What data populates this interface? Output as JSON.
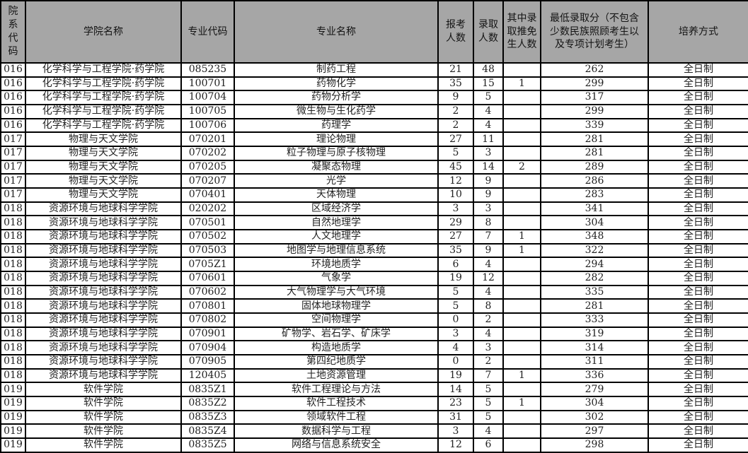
{
  "table": {
    "columns": [
      {
        "key": "dept-code",
        "label": "院系代码"
      },
      {
        "key": "college-name",
        "label": "学院名称"
      },
      {
        "key": "major-code",
        "label": "专业代码"
      },
      {
        "key": "major-name",
        "label": "专业名称"
      },
      {
        "key": "applicants",
        "label": "报考人数"
      },
      {
        "key": "admitted",
        "label": "录取人数"
      },
      {
        "key": "exempt-count",
        "label": "其中录取推免生人数"
      },
      {
        "key": "min-score",
        "label": "最低录取分（不包含少数民族照顾考生以及专项计划考生）"
      },
      {
        "key": "training-mode",
        "label": "培养方式"
      }
    ],
    "rows": [
      [
        "016",
        "化学科学与工程学院·药学院",
        "085235",
        "制药工程",
        "21",
        "48",
        "",
        "262",
        "全日制"
      ],
      [
        "016",
        "化学科学与工程学院·药学院",
        "100701",
        "药物化学",
        "35",
        "15",
        "1",
        "299",
        "全日制"
      ],
      [
        "016",
        "化学科学与工程学院·药学院",
        "100704",
        "药物分析学",
        "9",
        "5",
        "",
        "317",
        "全日制"
      ],
      [
        "016",
        "化学科学与工程学院·药学院",
        "100705",
        "微生物与生化药学",
        "2",
        "4",
        "",
        "299",
        "全日制"
      ],
      [
        "016",
        "化学科学与工程学院·药学院",
        "100706",
        "药理学",
        "2",
        "4",
        "",
        "339",
        "全日制"
      ],
      [
        "017",
        "物理与天文学院",
        "070201",
        "理论物理",
        "27",
        "11",
        "",
        "281",
        "全日制"
      ],
      [
        "017",
        "物理与天文学院",
        "070202",
        "粒子物理与原子核物理",
        "5",
        "3",
        "",
        "281",
        "全日制"
      ],
      [
        "017",
        "物理与天文学院",
        "070205",
        "凝聚态物理",
        "45",
        "14",
        "2",
        "289",
        "全日制"
      ],
      [
        "017",
        "物理与天文学院",
        "070207",
        "光学",
        "12",
        "9",
        "",
        "286",
        "全日制"
      ],
      [
        "017",
        "物理与天文学院",
        "070401",
        "天体物理",
        "10",
        "9",
        "",
        "283",
        "全日制"
      ],
      [
        "018",
        "资源环境与地球科学学院",
        "020202",
        "区域经济学",
        "3",
        "3",
        "",
        "341",
        "全日制"
      ],
      [
        "018",
        "资源环境与地球科学学院",
        "070501",
        "自然地理学",
        "29",
        "8",
        "",
        "304",
        "全日制"
      ],
      [
        "018",
        "资源环境与地球科学学院",
        "070502",
        "人文地理学",
        "27",
        "7",
        "1",
        "348",
        "全日制"
      ],
      [
        "018",
        "资源环境与地球科学学院",
        "070503",
        "地图学与地理信息系统",
        "35",
        "9",
        "1",
        "322",
        "全日制"
      ],
      [
        "018",
        "资源环境与地球科学学院",
        "0705Z1",
        "环境地质学",
        "6",
        "4",
        "",
        "294",
        "全日制"
      ],
      [
        "018",
        "资源环境与地球科学学院",
        "070601",
        "气象学",
        "19",
        "12",
        "",
        "282",
        "全日制"
      ],
      [
        "018",
        "资源环境与地球科学学院",
        "070602",
        "大气物理学与大气环境",
        "5",
        "4",
        "",
        "335",
        "全日制"
      ],
      [
        "018",
        "资源环境与地球科学学院",
        "070801",
        "固体地球物理学",
        "5",
        "8",
        "",
        "281",
        "全日制"
      ],
      [
        "018",
        "资源环境与地球科学学院",
        "070802",
        "空间物理学",
        "0",
        "2",
        "",
        "333",
        "全日制"
      ],
      [
        "018",
        "资源环境与地球科学学院",
        "070901",
        "矿物学、岩石学、矿床学",
        "3",
        "4",
        "",
        "319",
        "全日制"
      ],
      [
        "018",
        "资源环境与地球科学学院",
        "070904",
        "构造地质学",
        "4",
        "3",
        "",
        "314",
        "全日制"
      ],
      [
        "018",
        "资源环境与地球科学学院",
        "070905",
        "第四纪地质学",
        "0",
        "2",
        "",
        "311",
        "全日制"
      ],
      [
        "018",
        "资源环境与地球科学学院",
        "120405",
        "土地资源管理",
        "19",
        "7",
        "1",
        "336",
        "全日制"
      ],
      [
        "019",
        "软件学院",
        "0835Z1",
        "软件工程理论与方法",
        "14",
        "5",
        "",
        "279",
        "全日制"
      ],
      [
        "019",
        "软件学院",
        "0835Z2",
        "软件工程技术",
        "23",
        "5",
        "1",
        "304",
        "全日制"
      ],
      [
        "019",
        "软件学院",
        "0835Z3",
        "领域软件工程",
        "31",
        "5",
        "",
        "302",
        "全日制"
      ],
      [
        "019",
        "软件学院",
        "0835Z4",
        "数据科学与工程",
        "3",
        "4",
        "",
        "297",
        "全日制"
      ],
      [
        "019",
        "软件学院",
        "0835Z5",
        "网络与信息系统安全",
        "12",
        "6",
        "",
        "298",
        "全日制"
      ]
    ]
  },
  "colors": {
    "header_bg": "#a6a6a6",
    "border": "#000000",
    "text": "#222222"
  }
}
